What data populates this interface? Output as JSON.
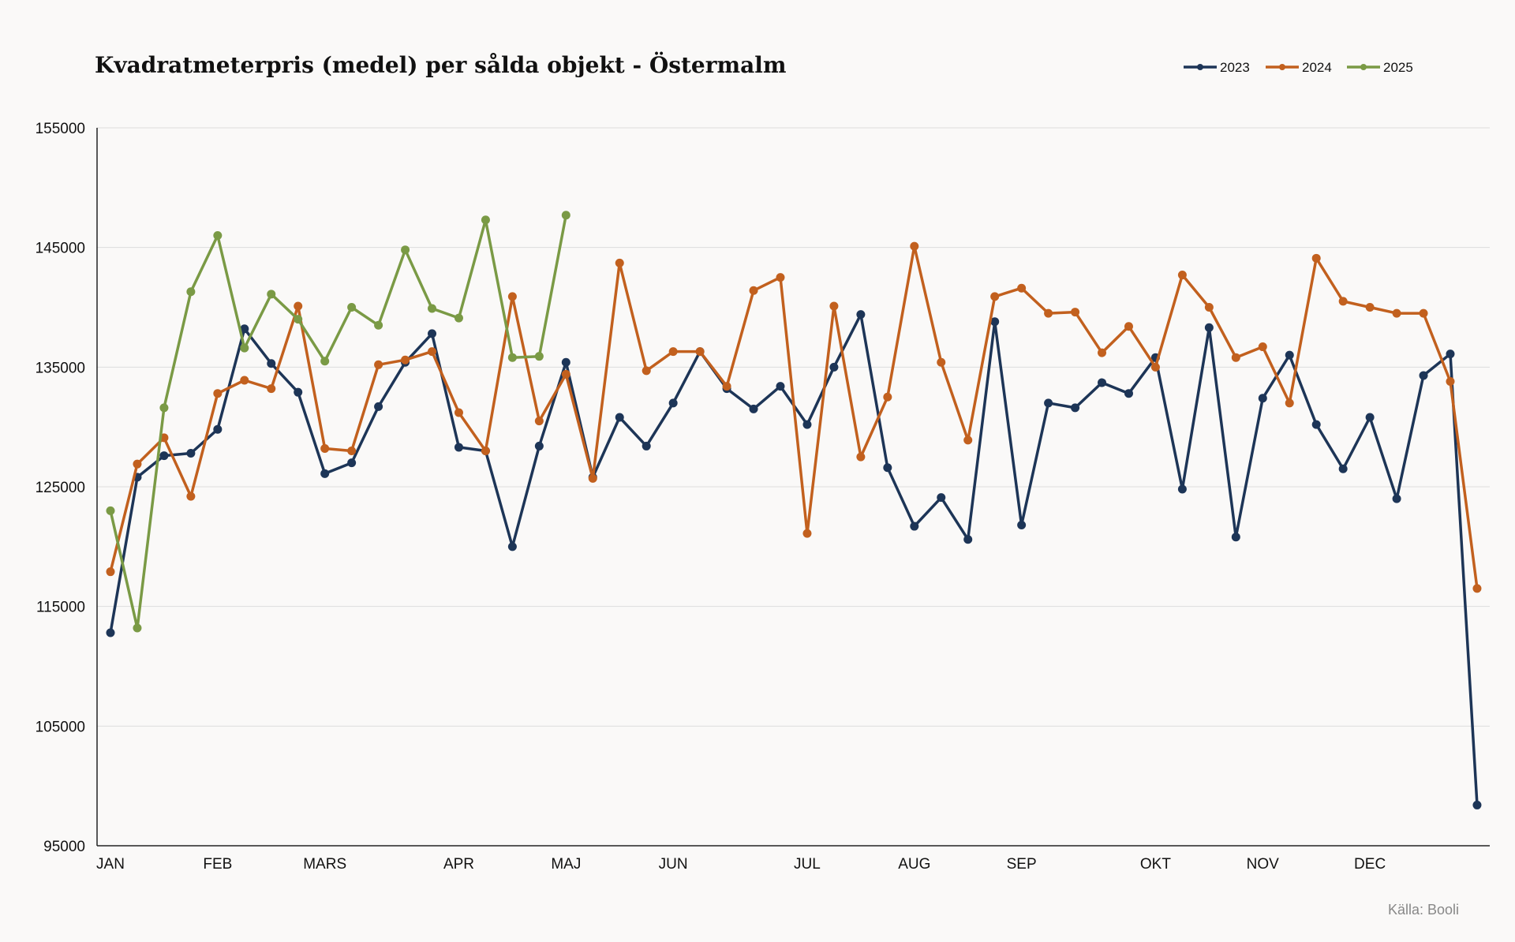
{
  "chart_data": {
    "type": "line",
    "title": "Kvadratmeterpris (medel) per sålda objekt - Östermalm",
    "source": "Källa: Booli",
    "xlabel": "",
    "ylabel": "",
    "ylim": [
      95000,
      155000
    ],
    "yticks": [
      "95000",
      "105000",
      "115000",
      "125000",
      "135000",
      "145000",
      "155000"
    ],
    "ytick_values": [
      95000,
      105000,
      115000,
      125000,
      135000,
      145000,
      155000
    ],
    "month_labels": [
      {
        "label": "JAN",
        "week": 1
      },
      {
        "label": "FEB",
        "week": 5
      },
      {
        "label": "MARS",
        "week": 9
      },
      {
        "label": "APR",
        "week": 14
      },
      {
        "label": "MAJ",
        "week": 18
      },
      {
        "label": "JUN",
        "week": 22
      },
      {
        "label": "JUL",
        "week": 27
      },
      {
        "label": "AUG",
        "week": 31
      },
      {
        "label": "SEP",
        "week": 35
      },
      {
        "label": "OKT",
        "week": 40
      },
      {
        "label": "NOV",
        "week": 44
      },
      {
        "label": "DEC",
        "week": 48
      }
    ],
    "grid": true,
    "legend_position": "top-right",
    "series": [
      {
        "name": "2023",
        "color": "#1d3557",
        "values": [
          112800,
          125800,
          127600,
          127800,
          129800,
          138200,
          135300,
          132900,
          126100,
          127000,
          131700,
          135400,
          137800,
          128300,
          128000,
          120000,
          128400,
          135400,
          125800,
          130800,
          128400,
          132000,
          136300,
          133200,
          131500,
          133400,
          130200,
          135000,
          139400,
          126600,
          121700,
          124100,
          120600,
          138800,
          121800,
          132000,
          131600,
          133700,
          132800,
          135800,
          124800,
          138300,
          120800,
          132400,
          136000,
          130200,
          126500,
          130800,
          124000,
          134300,
          136100,
          98400
        ]
      },
      {
        "name": "2024",
        "color": "#c2601e",
        "values": [
          117900,
          126900,
          129100,
          124200,
          132800,
          133900,
          133200,
          140100,
          128200,
          128000,
          135200,
          135600,
          136300,
          131200,
          128000,
          140900,
          130500,
          134400,
          125700,
          143700,
          134700,
          136300,
          136300,
          133400,
          141400,
          142500,
          121100,
          140100,
          127500,
          132500,
          145100,
          135400,
          128900,
          140900,
          141600,
          139500,
          139600,
          136200,
          138400,
          135000,
          142700,
          140000,
          135800,
          136700,
          132000,
          144100,
          140500,
          140000,
          139500,
          139500,
          133800,
          116500
        ]
      },
      {
        "name": "2025",
        "color": "#7a9a45",
        "values": [
          123000,
          113200,
          131600,
          141300,
          146000,
          136600,
          141100,
          139000,
          135500,
          140000,
          138500,
          144800,
          139900,
          139100,
          147300,
          135800,
          135900,
          147700
        ]
      }
    ]
  }
}
